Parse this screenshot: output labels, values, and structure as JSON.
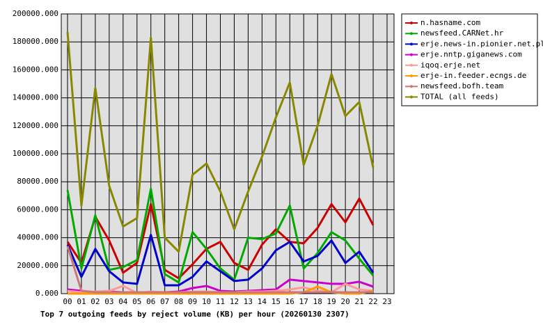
{
  "chart_data": {
    "type": "line",
    "title": "Top 7 outgoing feeds by reject volume (KB) per hour (20260130 2307)",
    "categories": [
      "00",
      "01",
      "02",
      "03",
      "04",
      "05",
      "06",
      "07",
      "08",
      "09",
      "10",
      "11",
      "12",
      "13",
      "14",
      "15",
      "16",
      "17",
      "18",
      "19",
      "20",
      "21",
      "22",
      "23"
    ],
    "ylim": [
      0,
      200000
    ],
    "yticks": [
      {
        "value": 0,
        "label": "0.000"
      },
      {
        "value": 20000,
        "label": "20000.000"
      },
      {
        "value": 40000,
        "label": "40000.000"
      },
      {
        "value": 60000,
        "label": "60000.000"
      },
      {
        "value": 80000,
        "label": "80000.000"
      },
      {
        "value": 100000,
        "label": "100000.000"
      },
      {
        "value": 120000,
        "label": "120000.000"
      },
      {
        "value": 140000,
        "label": "140000.000"
      },
      {
        "value": 160000,
        "label": "160000.000"
      },
      {
        "value": 180000,
        "label": "180000.000"
      },
      {
        "value": 200000,
        "label": "200000.000"
      }
    ],
    "grid": true,
    "series": [
      {
        "name": "n.hasname.com",
        "color": "#cc0000",
        "values": [
          37000,
          22000,
          55000,
          38000,
          15000,
          22000,
          64000,
          17000,
          11000,
          21000,
          32000,
          37000,
          22000,
          17000,
          35000,
          46000,
          37000,
          36000,
          47000,
          64000,
          51000,
          68000,
          49000,
          null
        ]
      },
      {
        "name": "newsfeed.CARNet.hr",
        "color": "#00aa00",
        "values": [
          74000,
          18000,
          56000,
          17000,
          19000,
          24000,
          75000,
          14000,
          8000,
          44000,
          32000,
          18000,
          10000,
          40000,
          39000,
          43000,
          63000,
          18000,
          29000,
          44000,
          38000,
          25000,
          13000,
          null
        ]
      },
      {
        "name": "erje.news-in.pionier.net.pl",
        "color": "#0000cc",
        "values": [
          35000,
          12000,
          32000,
          16000,
          8000,
          7000,
          42000,
          6000,
          6000,
          12000,
          23000,
          16000,
          9000,
          10000,
          18000,
          31000,
          37000,
          23000,
          27000,
          38000,
          22000,
          30000,
          15000,
          null
        ]
      },
      {
        "name": "erje.nntp.giganews.com",
        "color": "#cc00cc",
        "values": [
          3000,
          2000,
          1000,
          1500,
          1000,
          1000,
          1000,
          1000,
          1500,
          4000,
          5500,
          2000,
          1500,
          2000,
          2500,
          3000,
          10000,
          9000,
          8000,
          7000,
          7000,
          8500,
          5000,
          null
        ]
      },
      {
        "name": "iqoq.erje.net",
        "color": "#ff9999",
        "values": [
          2000,
          1000,
          1500,
          2000,
          5500,
          500,
          1500,
          1000,
          1000,
          1500,
          1500,
          1000,
          1000,
          1500,
          1500,
          2000,
          3000,
          4500,
          2000,
          1000,
          7000,
          3000,
          2000,
          null
        ]
      },
      {
        "name": "erje-in.feeder.ecngs.de",
        "color": "#ff9900",
        "values": [
          0,
          0,
          0,
          0,
          0,
          0,
          0,
          0,
          0,
          0,
          0,
          0,
          0,
          0,
          0,
          0,
          0,
          1000,
          5000,
          1000,
          0,
          0,
          2000,
          null
        ]
      },
      {
        "name": "newsfeed.bofh.team",
        "color": "#cc7777",
        "values": [
          34000,
          2000,
          1000,
          1000,
          1000,
          1000,
          1000,
          1000,
          1000,
          1000,
          1000,
          1000,
          1000,
          1000,
          1000,
          1000,
          1000,
          1000,
          1000,
          1000,
          1000,
          1000,
          1000,
          null
        ]
      },
      {
        "name": "TOTAL (all feeds)",
        "color": "#888800",
        "values": [
          187000,
          63000,
          147000,
          77000,
          48000,
          54000,
          183000,
          40000,
          30000,
          85000,
          93000,
          73000,
          46000,
          73000,
          98000,
          126000,
          151000,
          92000,
          120000,
          157000,
          127000,
          137000,
          90000,
          null
        ]
      }
    ],
    "legend": "upper right"
  }
}
